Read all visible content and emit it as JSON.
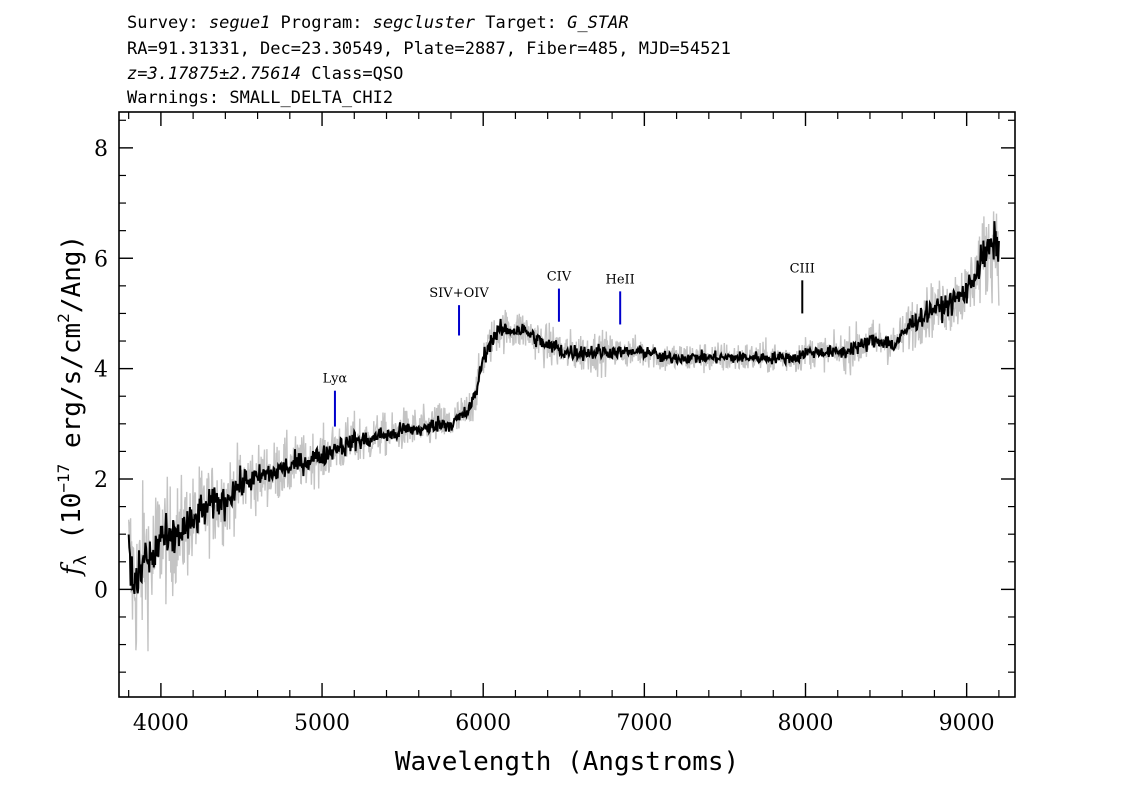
{
  "header": {
    "line1": [
      {
        "text": "Survey: ",
        "italic": false
      },
      {
        "text": "segue1",
        "italic": true
      },
      {
        "text": " Program: ",
        "italic": false
      },
      {
        "text": "segcluster",
        "italic": true
      },
      {
        "text": " Target: ",
        "italic": false
      },
      {
        "text": "G_STAR",
        "italic": true
      }
    ],
    "line2": "RA=91.31331, Dec=23.30549, Plate=2887, Fiber=485, MJD=54521",
    "line3": [
      {
        "text": "z=3.17875±2.75614",
        "italic": true
      },
      {
        "text": " Class=QSO",
        "italic": false
      }
    ],
    "line4": "Warnings: SMALL_DELTA_CHI2"
  },
  "chart_data": {
    "type": "line",
    "title": "",
    "xlabel": "Wavelength (Angstroms)",
    "ylabel_parts": {
      "f": "f",
      "sub": "λ",
      "open": " (10",
      "exp1": "−17",
      "mid": " erg/s/cm",
      "exp2": "2",
      "close": "/Ang)"
    },
    "xlim": [
      3740,
      9300
    ],
    "ylim": [
      -1.95,
      8.65
    ],
    "x_ticks": [
      4000,
      5000,
      6000,
      7000,
      8000,
      9000
    ],
    "x_tick_labels": [
      "4000",
      "5000",
      "6000",
      "7000",
      "8000",
      "9000"
    ],
    "y_ticks": [
      0,
      2,
      4,
      6,
      8
    ],
    "y_tick_labels": [
      "0",
      "2",
      "4",
      "6",
      "8"
    ],
    "grid": false,
    "legend": "none",
    "series": [
      {
        "role": "flux",
        "color": "#000000",
        "x": [
          3800,
          3850,
          3900,
          3950,
          4000,
          4050,
          4100,
          4150,
          4200,
          4250,
          4300,
          4350,
          4400,
          4450,
          4500,
          4550,
          4600,
          4650,
          4700,
          4750,
          4800,
          4850,
          4900,
          4950,
          5000,
          5050,
          5100,
          5150,
          5200,
          5250,
          5300,
          5350,
          5400,
          5450,
          5500,
          5550,
          5600,
          5650,
          5700,
          5750,
          5800,
          5850,
          5900,
          5950,
          6000,
          6050,
          6100,
          6150,
          6200,
          6250,
          6300,
          6350,
          6400,
          6450,
          6500,
          6550,
          6600,
          6650,
          6700,
          6750,
          6800,
          6850,
          6900,
          6950,
          7000,
          7050,
          7100,
          7150,
          7200,
          7250,
          7300,
          7350,
          7400,
          7450,
          7500,
          7550,
          7600,
          7650,
          7700,
          7750,
          7800,
          7850,
          7900,
          7950,
          8000,
          8050,
          8100,
          8150,
          8200,
          8250,
          8300,
          8350,
          8400,
          8450,
          8500,
          8550,
          8600,
          8650,
          8700,
          8750,
          8800,
          8850,
          8900,
          8950,
          9000,
          9050,
          9100,
          9150,
          9200
        ],
        "y": [
          0.5,
          0.0,
          0.6,
          0.5,
          1.0,
          0.8,
          1.0,
          1.1,
          1.2,
          1.4,
          1.5,
          1.6,
          1.6,
          1.8,
          1.9,
          2.0,
          2.0,
          2.1,
          2.1,
          2.2,
          2.2,
          2.3,
          2.3,
          2.4,
          2.4,
          2.5,
          2.6,
          2.6,
          2.7,
          2.7,
          2.7,
          2.8,
          2.8,
          2.8,
          2.9,
          2.9,
          2.9,
          2.9,
          3.0,
          3.0,
          3.0,
          3.1,
          3.2,
          3.5,
          4.2,
          4.5,
          4.7,
          4.7,
          4.7,
          4.7,
          4.6,
          4.5,
          4.4,
          4.4,
          4.3,
          4.3,
          4.3,
          4.3,
          4.3,
          4.3,
          4.3,
          4.3,
          4.3,
          4.3,
          4.3,
          4.3,
          4.2,
          4.2,
          4.2,
          4.2,
          4.2,
          4.2,
          4.2,
          4.2,
          4.2,
          4.2,
          4.2,
          4.2,
          4.2,
          4.2,
          4.2,
          4.2,
          4.2,
          4.2,
          4.3,
          4.3,
          4.3,
          4.3,
          4.3,
          4.3,
          4.4,
          4.4,
          4.5,
          4.5,
          4.5,
          4.4,
          4.6,
          4.8,
          4.9,
          5.0,
          5.1,
          5.1,
          5.2,
          5.3,
          5.4,
          5.7,
          6.0,
          6.2,
          6.3
        ]
      },
      {
        "role": "error-envelope",
        "color": "#c4c4c4",
        "x": [
          3800,
          3850,
          3900,
          3950,
          4000,
          4050,
          4100,
          4150,
          4200,
          4250,
          4300,
          4350,
          4400,
          4450,
          4500,
          4550,
          4600,
          4650,
          4700,
          4750,
          4800,
          4850,
          4900,
          4950,
          5000,
          5050,
          5100,
          5150,
          5200,
          5250,
          5300,
          5350,
          5400,
          5450,
          5500,
          5550,
          5600,
          5650,
          5700,
          5750,
          5800,
          5850,
          5900,
          5950,
          6000,
          6050,
          6100,
          6150,
          6200,
          6250,
          6300,
          6350,
          6400,
          6450,
          6500,
          6550,
          6600,
          6650,
          6700,
          6750,
          6800,
          6850,
          6900,
          6950,
          7000,
          7050,
          7100,
          7150,
          7200,
          7250,
          7300,
          7350,
          7400,
          7450,
          7500,
          7550,
          7600,
          7650,
          7700,
          7750,
          7800,
          7850,
          7900,
          7950,
          8000,
          8050,
          8100,
          8150,
          8200,
          8250,
          8300,
          8350,
          8400,
          8450,
          8500,
          8550,
          8600,
          8650,
          8700,
          8750,
          8800,
          8850,
          8900,
          8950,
          9000,
          9050,
          9100,
          9150,
          9200
        ],
        "y": [
          0.5,
          0.0,
          0.6,
          0.5,
          1.0,
          0.8,
          1.0,
          1.1,
          1.2,
          1.4,
          1.5,
          1.6,
          1.6,
          1.8,
          1.9,
          2.0,
          2.0,
          2.1,
          2.1,
          2.2,
          2.2,
          2.3,
          2.3,
          2.4,
          2.4,
          2.5,
          2.6,
          2.6,
          2.7,
          2.7,
          2.7,
          2.8,
          2.8,
          2.8,
          2.9,
          2.9,
          2.9,
          2.9,
          3.0,
          3.0,
          3.0,
          3.1,
          3.2,
          3.5,
          4.2,
          4.5,
          4.7,
          4.7,
          4.7,
          4.7,
          4.6,
          4.5,
          4.4,
          4.4,
          4.3,
          4.3,
          4.3,
          4.3,
          4.3,
          4.3,
          4.3,
          4.3,
          4.3,
          4.3,
          4.3,
          4.3,
          4.2,
          4.2,
          4.2,
          4.2,
          4.2,
          4.2,
          4.2,
          4.2,
          4.2,
          4.2,
          4.2,
          4.2,
          4.2,
          4.2,
          4.2,
          4.2,
          4.2,
          4.2,
          4.3,
          4.3,
          4.3,
          4.3,
          4.3,
          4.3,
          4.4,
          4.4,
          4.5,
          4.5,
          4.5,
          4.4,
          4.6,
          4.8,
          4.9,
          5.0,
          5.1,
          5.1,
          5.2,
          5.3,
          5.4,
          5.7,
          6.0,
          6.2,
          6.3
        ],
        "err": [
          1.6,
          1.5,
          1.4,
          1.3,
          1.2,
          1.1,
          1.0,
          1.0,
          0.9,
          0.9,
          0.8,
          0.8,
          0.8,
          0.7,
          0.7,
          0.7,
          0.6,
          0.6,
          0.6,
          0.6,
          0.6,
          0.5,
          0.5,
          0.5,
          0.5,
          0.5,
          0.5,
          0.5,
          0.5,
          0.5,
          0.4,
          0.4,
          0.4,
          0.4,
          0.4,
          0.4,
          0.4,
          0.4,
          0.4,
          0.4,
          0.4,
          0.4,
          0.4,
          0.4,
          0.4,
          0.4,
          0.4,
          0.4,
          0.4,
          0.4,
          0.4,
          0.4,
          0.4,
          0.4,
          0.4,
          0.4,
          0.4,
          0.4,
          0.4,
          0.4,
          0.3,
          0.3,
          0.3,
          0.3,
          0.3,
          0.3,
          0.3,
          0.3,
          0.3,
          0.3,
          0.3,
          0.3,
          0.3,
          0.3,
          0.3,
          0.3,
          0.3,
          0.3,
          0.3,
          0.3,
          0.3,
          0.3,
          0.3,
          0.3,
          0.3,
          0.3,
          0.3,
          0.3,
          0.3,
          0.4,
          0.4,
          0.4,
          0.4,
          0.4,
          0.4,
          0.4,
          0.4,
          0.5,
          0.5,
          0.5,
          0.5,
          0.5,
          0.6,
          0.6,
          0.6,
          0.7,
          0.8,
          0.9,
          1.0
        ]
      }
    ],
    "emission_lines": [
      {
        "label": "Lyα",
        "x": 5080,
        "y_low": 2.95,
        "y_high": 3.6,
        "color": "#0000cc"
      },
      {
        "label": "SIV+OIV",
        "x": 5850,
        "y_low": 4.6,
        "y_high": 5.15,
        "color": "#0000cc"
      },
      {
        "label": "CIV",
        "x": 6470,
        "y_low": 4.85,
        "y_high": 5.45,
        "color": "#0000cc"
      },
      {
        "label": "HeII",
        "x": 6850,
        "y_low": 4.8,
        "y_high": 5.4,
        "color": "#0000cc"
      },
      {
        "label": "CIII",
        "x": 7980,
        "y_low": 5.0,
        "y_high": 5.6,
        "color": "#000000"
      }
    ]
  }
}
